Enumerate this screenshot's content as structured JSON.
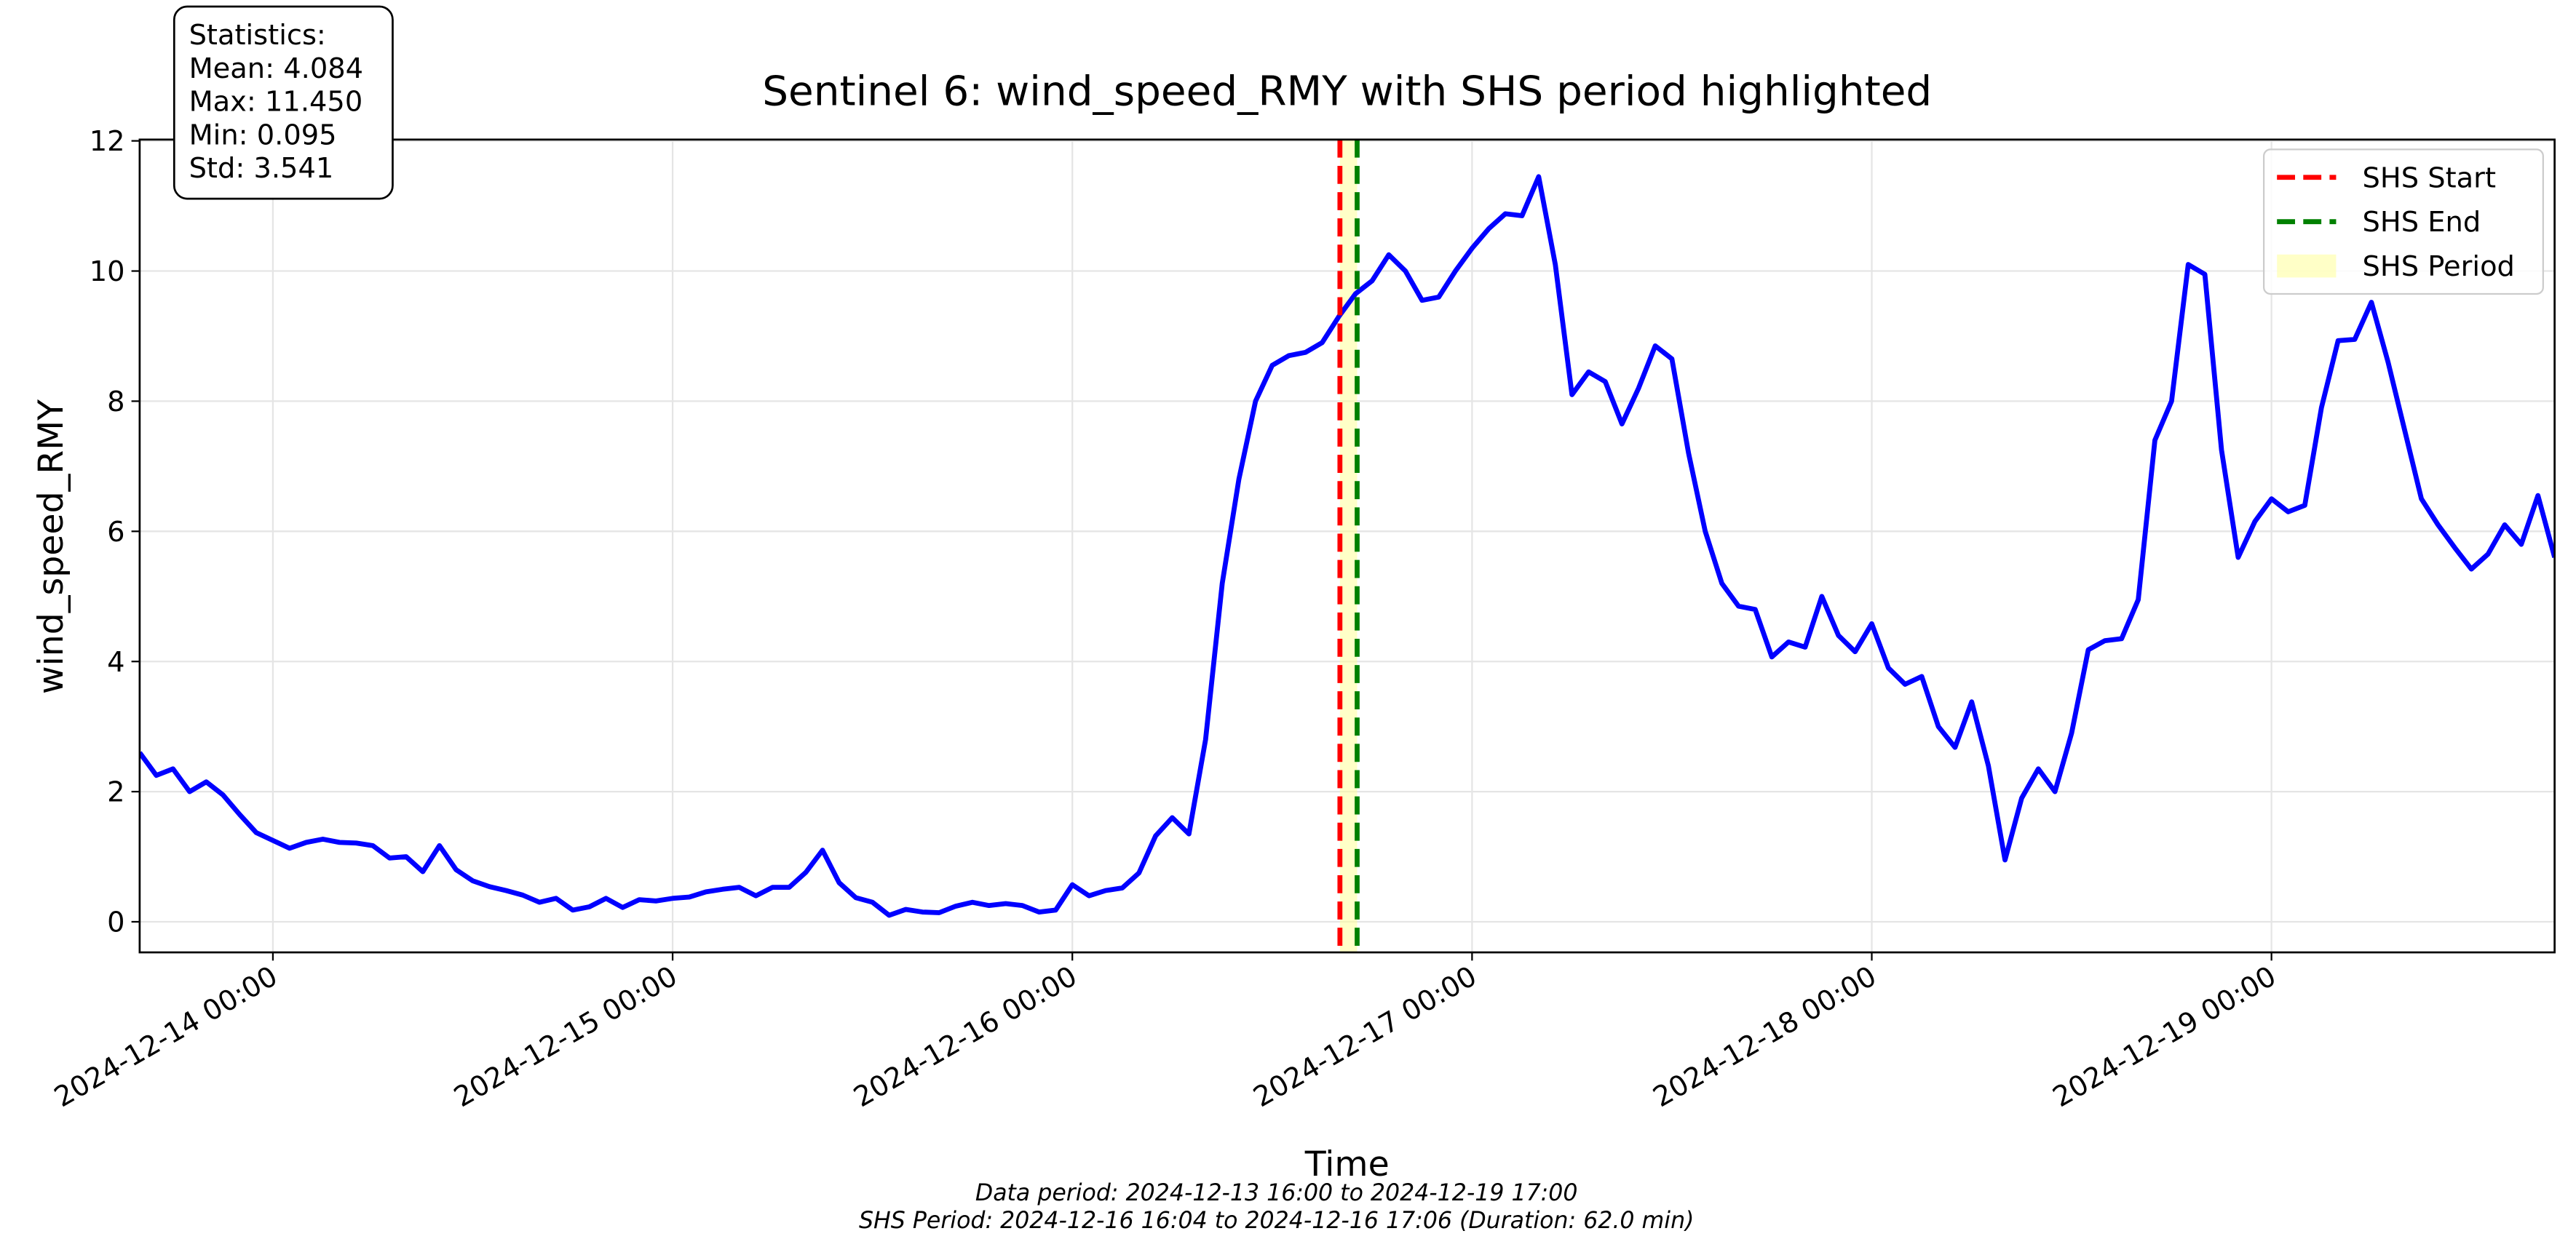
{
  "chart_data": {
    "type": "line",
    "title": "Sentinel 6: wind_speed_RMY with SHS period highlighted",
    "xlabel": "Time",
    "ylabel": "wind_speed_RMY",
    "x": [
      "2024-12-13 16:00",
      "2024-12-13 17:00",
      "2024-12-13 18:00",
      "2024-12-13 19:00",
      "2024-12-13 20:00",
      "2024-12-13 21:00",
      "2024-12-13 22:00",
      "2024-12-13 23:00",
      "2024-12-14 00:00",
      "2024-12-14 01:00",
      "2024-12-14 02:00",
      "2024-12-14 03:00",
      "2024-12-14 04:00",
      "2024-12-14 05:00",
      "2024-12-14 06:00",
      "2024-12-14 07:00",
      "2024-12-14 08:00",
      "2024-12-14 09:00",
      "2024-12-14 10:00",
      "2024-12-14 11:00",
      "2024-12-14 12:00",
      "2024-12-14 13:00",
      "2024-12-14 14:00",
      "2024-12-14 15:00",
      "2024-12-14 16:00",
      "2024-12-14 17:00",
      "2024-12-14 18:00",
      "2024-12-14 19:00",
      "2024-12-14 20:00",
      "2024-12-14 21:00",
      "2024-12-14 22:00",
      "2024-12-14 23:00",
      "2024-12-15 00:00",
      "2024-12-15 01:00",
      "2024-12-15 02:00",
      "2024-12-15 03:00",
      "2024-12-15 04:00",
      "2024-12-15 05:00",
      "2024-12-15 06:00",
      "2024-12-15 07:00",
      "2024-12-15 08:00",
      "2024-12-15 09:00",
      "2024-12-15 10:00",
      "2024-12-15 11:00",
      "2024-12-15 12:00",
      "2024-12-15 13:00",
      "2024-12-15 14:00",
      "2024-12-15 15:00",
      "2024-12-15 16:00",
      "2024-12-15 17:00",
      "2024-12-15 18:00",
      "2024-12-15 19:00",
      "2024-12-15 20:00",
      "2024-12-15 21:00",
      "2024-12-15 22:00",
      "2024-12-15 23:00",
      "2024-12-16 00:00",
      "2024-12-16 01:00",
      "2024-12-16 02:00",
      "2024-12-16 03:00",
      "2024-12-16 04:00",
      "2024-12-16 05:00",
      "2024-12-16 06:00",
      "2024-12-16 07:00",
      "2024-12-16 08:00",
      "2024-12-16 09:00",
      "2024-12-16 10:00",
      "2024-12-16 11:00",
      "2024-12-16 12:00",
      "2024-12-16 13:00",
      "2024-12-16 14:00",
      "2024-12-16 15:00",
      "2024-12-16 16:00",
      "2024-12-16 17:00",
      "2024-12-16 18:00",
      "2024-12-16 19:00",
      "2024-12-16 20:00",
      "2024-12-16 21:00",
      "2024-12-16 22:00",
      "2024-12-16 23:00",
      "2024-12-17 00:00",
      "2024-12-17 01:00",
      "2024-12-17 02:00",
      "2024-12-17 03:00",
      "2024-12-17 04:00",
      "2024-12-17 05:00",
      "2024-12-17 06:00",
      "2024-12-17 07:00",
      "2024-12-17 08:00",
      "2024-12-17 09:00",
      "2024-12-17 10:00",
      "2024-12-17 11:00",
      "2024-12-17 12:00",
      "2024-12-17 13:00",
      "2024-12-17 14:00",
      "2024-12-17 15:00",
      "2024-12-17 16:00",
      "2024-12-17 17:00",
      "2024-12-17 18:00",
      "2024-12-17 19:00",
      "2024-12-17 20:00",
      "2024-12-17 21:00",
      "2024-12-17 22:00",
      "2024-12-17 23:00",
      "2024-12-18 00:00",
      "2024-12-18 01:00",
      "2024-12-18 02:00",
      "2024-12-18 03:00",
      "2024-12-18 04:00",
      "2024-12-18 05:00",
      "2024-12-18 06:00",
      "2024-12-18 07:00",
      "2024-12-18 08:00",
      "2024-12-18 09:00",
      "2024-12-18 10:00",
      "2024-12-18 11:00",
      "2024-12-18 12:00",
      "2024-12-18 13:00",
      "2024-12-18 14:00",
      "2024-12-18 15:00",
      "2024-12-18 16:00",
      "2024-12-18 17:00",
      "2024-12-18 18:00",
      "2024-12-18 19:00",
      "2024-12-18 20:00",
      "2024-12-18 21:00",
      "2024-12-18 22:00",
      "2024-12-18 23:00",
      "2024-12-19 00:00",
      "2024-12-19 01:00",
      "2024-12-19 02:00",
      "2024-12-19 03:00",
      "2024-12-19 04:00",
      "2024-12-19 05:00",
      "2024-12-19 06:00",
      "2024-12-19 07:00",
      "2024-12-19 08:00",
      "2024-12-19 09:00",
      "2024-12-19 10:00",
      "2024-12-19 11:00",
      "2024-12-19 12:00",
      "2024-12-19 13:00",
      "2024-12-19 14:00",
      "2024-12-19 15:00",
      "2024-12-19 16:00",
      "2024-12-19 17:00"
    ],
    "series": [
      {
        "color": "#0000ff",
        "values": [
          2.6,
          2.25,
          2.35,
          2.0,
          2.15,
          1.95,
          1.65,
          1.37,
          1.25,
          1.13,
          1.22,
          1.27,
          1.22,
          1.21,
          1.17,
          0.98,
          1.0,
          0.77,
          1.17,
          0.8,
          0.63,
          0.54,
          0.48,
          0.41,
          0.3,
          0.36,
          0.18,
          0.23,
          0.36,
          0.22,
          0.34,
          0.32,
          0.36,
          0.38,
          0.46,
          0.5,
          0.53,
          0.4,
          0.53,
          0.53,
          0.76,
          1.1,
          0.6,
          0.37,
          0.3,
          0.1,
          0.19,
          0.15,
          0.14,
          0.24,
          0.3,
          0.25,
          0.28,
          0.25,
          0.15,
          0.18,
          0.57,
          0.4,
          0.48,
          0.52,
          0.75,
          1.32,
          1.6,
          1.35,
          2.8,
          5.2,
          6.8,
          8.0,
          8.55,
          8.7,
          8.75,
          8.9,
          9.3,
          9.65,
          9.85,
          10.25,
          10.0,
          9.55,
          9.6,
          10.0,
          10.35,
          10.65,
          10.88,
          10.85,
          11.45,
          10.1,
          8.1,
          8.45,
          8.3,
          7.65,
          8.2,
          8.85,
          8.65,
          7.2,
          6.0,
          5.2,
          4.85,
          4.8,
          4.07,
          4.3,
          4.22,
          5.0,
          4.4,
          4.15,
          4.58,
          3.9,
          3.65,
          3.77,
          3.0,
          2.68,
          3.38,
          2.4,
          0.95,
          1.9,
          2.35,
          2.0,
          2.9,
          4.18,
          4.32,
          4.35,
          4.95,
          7.4,
          8.0,
          10.1,
          9.95,
          7.25,
          5.6,
          6.15,
          6.5,
          6.3,
          6.4,
          7.9,
          8.93,
          8.95,
          9.52,
          8.6,
          7.55,
          6.5,
          6.1,
          5.75,
          5.42,
          5.65,
          6.1,
          5.8,
          6.55,
          5.6
        ]
      }
    ],
    "xlim": [
      "2024-12-13 16:00",
      "2024-12-19 17:00"
    ],
    "xticks": [
      "2024-12-14 00:00",
      "2024-12-15 00:00",
      "2024-12-16 00:00",
      "2024-12-17 00:00",
      "2024-12-18 00:00",
      "2024-12-19 00:00"
    ],
    "ylim": [
      -0.47,
      12.02
    ],
    "yticks": [
      0,
      2,
      4,
      6,
      8,
      10,
      12
    ],
    "grid": true,
    "legend_loc": "upper right",
    "vlines": [
      {
        "name": "SHS Start",
        "x": "2024-12-16 16:04",
        "color": "#ff0000"
      },
      {
        "name": "SHS End",
        "x": "2024-12-16 17:06",
        "color": "#008000"
      }
    ],
    "span": {
      "name": "SHS Period",
      "start": "2024-12-16 16:04",
      "end": "2024-12-16 17:06",
      "color": "#ffff99"
    },
    "stats_box": [
      "Statistics:",
      "Mean: 4.084",
      "Max: 11.450",
      "Min: 0.095",
      "Std: 3.541"
    ],
    "footnotes": [
      "Data period: 2024-12-13 16:00 to 2024-12-19 17:00",
      "SHS Period: 2024-12-16 16:04 to 2024-12-16 17:06 (Duration: 62.0 min)"
    ]
  }
}
